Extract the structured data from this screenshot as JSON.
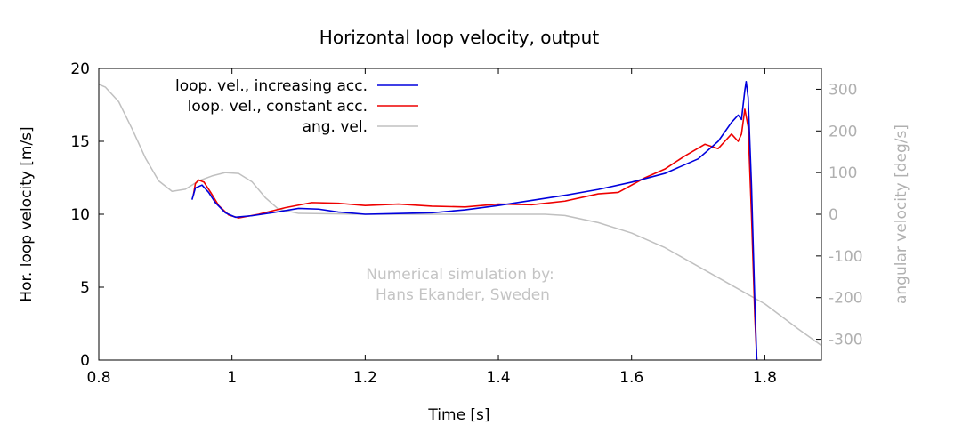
{
  "chart_data": {
    "type": "line",
    "title": "Horizontal loop velocity, output",
    "xlabel": "Time [s]",
    "ylabel": "Hor. loop velocity [m/s]",
    "y2label": "angular velocity [deg/s]",
    "xlim": [
      0.8,
      1.885
    ],
    "ylim": [
      0,
      20
    ],
    "y2lim": [
      -350,
      350
    ],
    "x_ticks": [
      0.8,
      1.0,
      1.2,
      1.4,
      1.6,
      1.8
    ],
    "x_tick_labels": [
      "0.8",
      "1",
      "1.2",
      "1.4",
      "1.6",
      "1.8"
    ],
    "y_ticks": [
      0,
      5,
      10,
      15,
      20
    ],
    "y_tick_labels": [
      "0",
      "5",
      "10",
      "15",
      "20"
    ],
    "y2_ticks": [
      300,
      200,
      100,
      0,
      -100,
      -200,
      -300
    ],
    "y2_tick_labels": [
      "300",
      "200",
      "100",
      "0",
      "-100",
      "-200",
      "-300"
    ],
    "legend_position": "top-left",
    "grid": false,
    "annotation": [
      "Numerical simulation by:",
      "Hans Ekander, Sweden"
    ],
    "series": [
      {
        "name": "loop. vel., increasing acc.",
        "color": "#0000dd",
        "axis": "left",
        "points": [
          [
            0.94,
            11.0
          ],
          [
            0.945,
            11.8
          ],
          [
            0.955,
            12.0
          ],
          [
            0.965,
            11.5
          ],
          [
            0.975,
            10.8
          ],
          [
            0.99,
            10.1
          ],
          [
            1.005,
            9.8
          ],
          [
            1.03,
            9.9
          ],
          [
            1.06,
            10.1
          ],
          [
            1.1,
            10.4
          ],
          [
            1.13,
            10.35
          ],
          [
            1.16,
            10.15
          ],
          [
            1.2,
            10.0
          ],
          [
            1.25,
            10.05
          ],
          [
            1.3,
            10.1
          ],
          [
            1.35,
            10.3
          ],
          [
            1.4,
            10.6
          ],
          [
            1.45,
            10.95
          ],
          [
            1.5,
            11.3
          ],
          [
            1.55,
            11.7
          ],
          [
            1.6,
            12.2
          ],
          [
            1.65,
            12.8
          ],
          [
            1.7,
            13.8
          ],
          [
            1.73,
            15.0
          ],
          [
            1.75,
            16.3
          ],
          [
            1.76,
            16.8
          ],
          [
            1.765,
            16.5
          ],
          [
            1.77,
            18.5
          ],
          [
            1.772,
            19.1
          ],
          [
            1.775,
            18.0
          ],
          [
            1.78,
            12.0
          ],
          [
            1.785,
            4.0
          ],
          [
            1.788,
            0.0
          ]
        ]
      },
      {
        "name": "loop. vel., constant acc.",
        "color": "#ee0000",
        "axis": "left",
        "points": [
          [
            0.942,
            11.3
          ],
          [
            0.945,
            12.1
          ],
          [
            0.95,
            12.35
          ],
          [
            0.958,
            12.2
          ],
          [
            0.968,
            11.5
          ],
          [
            0.98,
            10.6
          ],
          [
            0.995,
            9.95
          ],
          [
            1.01,
            9.75
          ],
          [
            1.04,
            10.0
          ],
          [
            1.08,
            10.45
          ],
          [
            1.12,
            10.8
          ],
          [
            1.16,
            10.75
          ],
          [
            1.2,
            10.6
          ],
          [
            1.25,
            10.7
          ],
          [
            1.3,
            10.55
          ],
          [
            1.35,
            10.5
          ],
          [
            1.4,
            10.7
          ],
          [
            1.45,
            10.65
          ],
          [
            1.5,
            10.9
          ],
          [
            1.55,
            11.4
          ],
          [
            1.58,
            11.5
          ],
          [
            1.62,
            12.5
          ],
          [
            1.65,
            13.1
          ],
          [
            1.68,
            14.0
          ],
          [
            1.71,
            14.8
          ],
          [
            1.73,
            14.5
          ],
          [
            1.74,
            15.0
          ],
          [
            1.75,
            15.5
          ],
          [
            1.76,
            15.0
          ],
          [
            1.765,
            15.5
          ],
          [
            1.77,
            17.2
          ],
          [
            1.775,
            16.0
          ],
          [
            1.78,
            10.0
          ],
          [
            1.785,
            3.0
          ],
          [
            1.788,
            0.0
          ]
        ]
      },
      {
        "name": "ang. vel.",
        "color": "#c0c0c0",
        "axis": "right",
        "points": [
          [
            0.8,
            312
          ],
          [
            0.81,
            305
          ],
          [
            0.83,
            270
          ],
          [
            0.85,
            205
          ],
          [
            0.87,
            135
          ],
          [
            0.89,
            80
          ],
          [
            0.91,
            55
          ],
          [
            0.93,
            60
          ],
          [
            0.95,
            80
          ],
          [
            0.97,
            92
          ],
          [
            0.99,
            100
          ],
          [
            1.01,
            98
          ],
          [
            1.03,
            78
          ],
          [
            1.05,
            40
          ],
          [
            1.07,
            12
          ],
          [
            1.1,
            2
          ],
          [
            1.2,
            0
          ],
          [
            1.3,
            0
          ],
          [
            1.4,
            0
          ],
          [
            1.47,
            0
          ],
          [
            1.5,
            -3
          ],
          [
            1.55,
            -20
          ],
          [
            1.6,
            -45
          ],
          [
            1.65,
            -80
          ],
          [
            1.7,
            -125
          ],
          [
            1.75,
            -170
          ],
          [
            1.8,
            -215
          ],
          [
            1.85,
            -275
          ],
          [
            1.885,
            -315
          ]
        ]
      }
    ]
  }
}
